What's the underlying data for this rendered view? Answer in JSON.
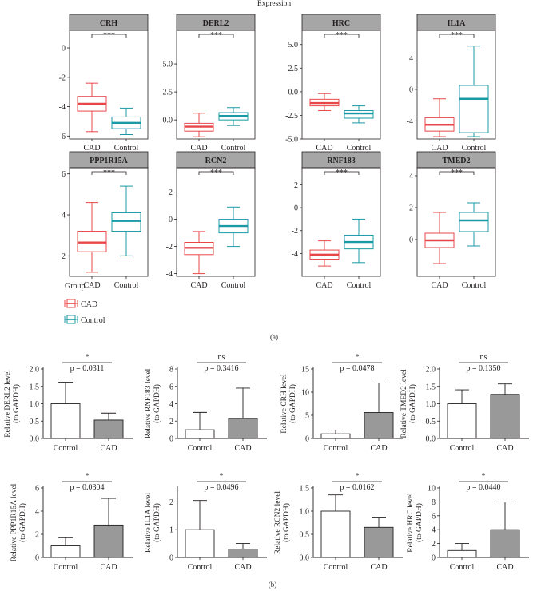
{
  "figure_title": "Expression",
  "panel_labels": {
    "a": "(a)",
    "b": "(b)"
  },
  "legend": {
    "title": "Group",
    "items": [
      {
        "name": "CAD",
        "color": "#e8474a"
      },
      {
        "name": "Control",
        "color": "#1a9aa5"
      }
    ]
  },
  "chart_data": [
    {
      "type": "box",
      "title": "CRH",
      "categories": [
        "CAD",
        "Control"
      ],
      "ylim": [
        -6.2,
        1.2
      ],
      "yticks": [
        0,
        -2,
        -4,
        -6
      ],
      "significance": "***",
      "series": [
        {
          "name": "CAD",
          "min": -5.7,
          "q1": -4.3,
          "median": -3.8,
          "q3": -3.3,
          "max": -2.4
        },
        {
          "name": "Control",
          "min": -5.9,
          "q1": -5.5,
          "median": -5.1,
          "q3": -4.7,
          "max": -4.1
        }
      ]
    },
    {
      "type": "box",
      "title": "DERL2",
      "categories": [
        "CAD",
        "Control"
      ],
      "ylim": [
        -1.7,
        8.0
      ],
      "yticks": [
        5.0,
        2.5,
        0.0
      ],
      "significance": "***",
      "series": [
        {
          "name": "CAD",
          "min": -1.5,
          "q1": -1.0,
          "median": -0.6,
          "q3": -0.3,
          "max": 0.6
        },
        {
          "name": "Control",
          "min": -0.5,
          "q1": 0.0,
          "median": 0.35,
          "q3": 0.65,
          "max": 1.1
        }
      ]
    },
    {
      "type": "box",
      "title": "HRC",
      "categories": [
        "CAD",
        "Control"
      ],
      "ylim": [
        -5.0,
        6.5
      ],
      "yticks": [
        5.0,
        2.5,
        0.0,
        -2.5,
        -5.0
      ],
      "significance": "***",
      "series": [
        {
          "name": "CAD",
          "min": -2.0,
          "q1": -1.5,
          "median": -1.2,
          "q3": -0.8,
          "max": -0.2
        },
        {
          "name": "Control",
          "min": -3.3,
          "q1": -2.8,
          "median": -2.3,
          "q3": -2.0,
          "max": -1.5
        }
      ]
    },
    {
      "type": "box",
      "title": "IL1A",
      "categories": [
        "CAD",
        "Control"
      ],
      "ylim": [
        -6.3,
        7.5
      ],
      "yticks": [
        4,
        0,
        -4
      ],
      "significance": "***",
      "series": [
        {
          "name": "CAD",
          "min": -6.0,
          "q1": -5.3,
          "median": -4.5,
          "q3": -3.6,
          "max": -1.2
        },
        {
          "name": "Control",
          "min": -6.0,
          "q1": -5.5,
          "median": -1.2,
          "q3": 0.5,
          "max": 5.5
        }
      ]
    },
    {
      "type": "box",
      "title": "PPP1R15A",
      "categories": [
        "CAD",
        "Control"
      ],
      "ylim": [
        1.0,
        6.3
      ],
      "yticks": [
        6,
        4,
        2
      ],
      "significance": "***",
      "series": [
        {
          "name": "CAD",
          "min": 1.2,
          "q1": 2.2,
          "median": 2.65,
          "q3": 3.2,
          "max": 4.6
        },
        {
          "name": "Control",
          "min": 2.0,
          "q1": 3.2,
          "median": 3.7,
          "q3": 4.1,
          "max": 5.4
        }
      ]
    },
    {
      "type": "box",
      "title": "RCN2",
      "categories": [
        "CAD",
        "Control"
      ],
      "ylim": [
        -4.2,
        3.8
      ],
      "yticks": [
        2,
        0,
        -2,
        -4
      ],
      "significance": "***",
      "series": [
        {
          "name": "CAD",
          "min": -4.0,
          "q1": -2.6,
          "median": -2.1,
          "q3": -1.7,
          "max": -0.9
        },
        {
          "name": "Control",
          "min": -2.0,
          "q1": -1.0,
          "median": -0.5,
          "q3": 0.0,
          "max": 0.9
        }
      ]
    },
    {
      "type": "box",
      "title": "RNF183",
      "categories": [
        "CAD",
        "Control"
      ],
      "ylim": [
        -6.0,
        3.5
      ],
      "yticks": [
        2,
        0,
        -2,
        -4
      ],
      "significance": "***",
      "series": [
        {
          "name": "CAD",
          "min": -5.1,
          "q1": -4.5,
          "median": -4.1,
          "q3": -3.7,
          "max": -2.9
        },
        {
          "name": "Control",
          "min": -4.8,
          "q1": -3.6,
          "median": -3.0,
          "q3": -2.4,
          "max": -1.0
        }
      ]
    },
    {
      "type": "box",
      "title": "TMED2",
      "categories": [
        "CAD",
        "Control"
      ],
      "ylim": [
        -2.3,
        4.5
      ],
      "yticks": [
        4,
        2,
        0
      ],
      "significance": "***",
      "series": [
        {
          "name": "CAD",
          "min": -1.5,
          "q1": -0.5,
          "median": -0.05,
          "q3": 0.4,
          "max": 1.7
        },
        {
          "name": "Control",
          "min": -0.4,
          "q1": 0.5,
          "median": 1.2,
          "q3": 1.7,
          "max": 2.3
        }
      ]
    },
    {
      "type": "bar",
      "ylabel": [
        "Relative DERL2 level",
        "(to GAPDH)"
      ],
      "categories": [
        "Control",
        "CAD"
      ],
      "values": [
        1.0,
        0.53
      ],
      "errors": [
        0.62,
        0.2
      ],
      "ylim": [
        0,
        2.0
      ],
      "yticks": [
        "0.0",
        "0.5",
        "1.0",
        "1.5",
        "2.0"
      ],
      "significance": "*",
      "p_label": "p = 0.0311"
    },
    {
      "type": "bar",
      "ylabel": [
        "Relative RNF183 level",
        "(to GAPDH)"
      ],
      "categories": [
        "Control",
        "CAD"
      ],
      "values": [
        1.0,
        2.3
      ],
      "errors": [
        2.0,
        3.5
      ],
      "ylim": [
        0,
        8
      ],
      "yticks": [
        "0",
        "2",
        "4",
        "6",
        "8"
      ],
      "significance": "ns",
      "p_label": "p = 0.3416"
    },
    {
      "type": "bar",
      "ylabel": [
        "Relative CRH level",
        "(to GAPDH)"
      ],
      "categories": [
        "Control",
        "CAD"
      ],
      "values": [
        1.0,
        5.6
      ],
      "errors": [
        0.8,
        6.4
      ],
      "ylim": [
        0,
        15
      ],
      "yticks": [
        "0",
        "5",
        "10",
        "15"
      ],
      "significance": "*",
      "p_label": "p = 0.0478"
    },
    {
      "type": "bar",
      "ylabel": [
        "Relative TMED2 level",
        "(to GAPDH)"
      ],
      "categories": [
        "Control",
        "CAD"
      ],
      "values": [
        1.0,
        1.27
      ],
      "errors": [
        0.4,
        0.3
      ],
      "ylim": [
        0,
        2.0
      ],
      "yticks": [
        "0.0",
        "0.5",
        "1.0",
        "1.5",
        "2.0"
      ],
      "significance": "ns",
      "p_label": "p = 0.1350"
    },
    {
      "type": "bar",
      "ylabel": [
        "Relative PPP1R15A level",
        "(to GAPDH)"
      ],
      "categories": [
        "Control",
        "CAD"
      ],
      "values": [
        1.0,
        2.8
      ],
      "errors": [
        0.7,
        2.3
      ],
      "ylim": [
        0,
        6
      ],
      "yticks": [
        "0",
        "2",
        "4",
        "6"
      ],
      "significance": "*",
      "p_label": "p = 0.0304"
    },
    {
      "type": "bar",
      "ylabel": [
        "Relative IL1A level",
        "(to GAPDH)"
      ],
      "categories": [
        "Control",
        "CAD"
      ],
      "values": [
        1.0,
        0.3
      ],
      "errors": [
        1.05,
        0.2
      ],
      "ylim": [
        0,
        2.5
      ],
      "yticks": [
        "0",
        "1",
        "2"
      ],
      "significance": "*",
      "p_label": "p = 0.0496"
    },
    {
      "type": "bar",
      "ylabel": [
        "Relative RCN2 level",
        "(to GAPDH)"
      ],
      "categories": [
        "Control",
        "CAD"
      ],
      "values": [
        1.0,
        0.65
      ],
      "errors": [
        0.35,
        0.22
      ],
      "ylim": [
        0,
        1.5
      ],
      "yticks": [
        "0.0",
        "0.5",
        "1.0",
        "1.5"
      ],
      "significance": "*",
      "p_label": "p = 0.0162"
    },
    {
      "type": "bar",
      "ylabel": [
        "Relative HRC level",
        "(to GAPDH)"
      ],
      "categories": [
        "Control",
        "CAD"
      ],
      "values": [
        1.0,
        4.0
      ],
      "errors": [
        1.0,
        4.0
      ],
      "ylim": [
        0,
        10
      ],
      "yticks": [
        "0",
        "2",
        "4",
        "6",
        "8",
        "10"
      ],
      "significance": "*",
      "p_label": "p = 0.0440"
    }
  ]
}
